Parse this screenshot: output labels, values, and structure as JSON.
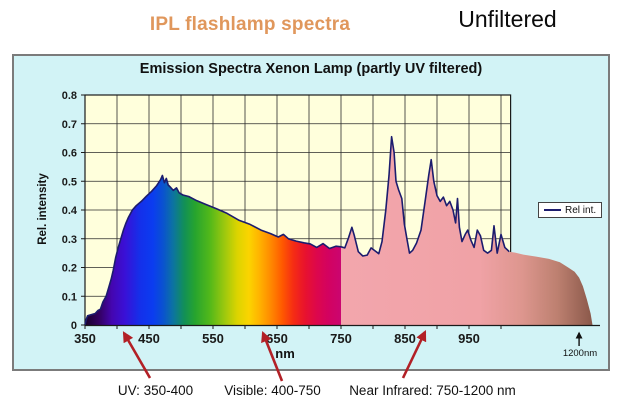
{
  "header": {
    "title": "IPL flashlamp spectra",
    "right_label": "Unfiltered"
  },
  "annotations": [
    {
      "label": "UV: 350-400"
    },
    {
      "label": "Visible: 400-750"
    },
    {
      "label": "Near Infrared: 750-1200 nm"
    }
  ],
  "colors": {
    "chart_bg": "#d2f3f6",
    "plot_bg": "#ffffdc",
    "grid": "#2b2b2b",
    "axis": "#1a1a1a",
    "line": "#1c1c6e",
    "title_orange": "#e0975c",
    "arrow_red": "#b22026",
    "nir_stops": [
      [
        0,
        "#f3a6ad"
      ],
      [
        0.55,
        "#f0a2a6"
      ],
      [
        0.72,
        "#dd968e"
      ],
      [
        0.86,
        "#bd8070"
      ],
      [
        1,
        "#8a584a"
      ]
    ],
    "visible_stops": [
      [
        350,
        "#180028"
      ],
      [
        372,
        "#330060"
      ],
      [
        392,
        "#4406b0"
      ],
      [
        412,
        "#3a10d6"
      ],
      [
        436,
        "#1430ea"
      ],
      [
        456,
        "#0b3cf0"
      ],
      [
        472,
        "#0a52d0"
      ],
      [
        488,
        "#0c74a0"
      ],
      [
        505,
        "#129057"
      ],
      [
        522,
        "#27a42e"
      ],
      [
        545,
        "#52b81a"
      ],
      [
        568,
        "#9cc80e"
      ],
      [
        588,
        "#dcd400"
      ],
      [
        606,
        "#fbd400"
      ],
      [
        622,
        "#ffb400"
      ],
      [
        640,
        "#ff8a00"
      ],
      [
        658,
        "#ff5a00"
      ],
      [
        676,
        "#f52c14"
      ],
      [
        694,
        "#e8122e"
      ],
      [
        712,
        "#dd074c"
      ],
      [
        730,
        "#d30260"
      ],
      [
        750,
        "#cb0570"
      ]
    ]
  },
  "chart_data": {
    "type": "area",
    "title": "Emission Spectra Xenon Lamp (partly UV filtered)",
    "xlabel": "nm",
    "ylabel": "Rel. intensity",
    "legend": {
      "label": "Rel int.",
      "position": "middle-right"
    },
    "grid": true,
    "xlim": [
      350,
      1015
    ],
    "ylim": [
      0,
      0.8
    ],
    "x_ticks": [
      350,
      450,
      550,
      650,
      750,
      850,
      950
    ],
    "x_minor_step": 50,
    "y_tick_labels": [
      "0.8",
      "0.7",
      "0.6",
      "0.5",
      "0.4",
      "0.3",
      "0.2",
      "0.1",
      "0"
    ],
    "bands": {
      "visible_nm": [
        350,
        750
      ],
      "near_infrared_nm": [
        750,
        1200
      ]
    },
    "extension": {
      "end_nm": 1143,
      "end_label": "1200nm"
    },
    "line_end_nm": 1016,
    "points": [
      [
        350,
        0
      ],
      [
        352,
        0.02
      ],
      [
        354,
        0.032
      ],
      [
        360,
        0.036
      ],
      [
        366,
        0.04
      ],
      [
        370,
        0.05
      ],
      [
        374,
        0.055
      ],
      [
        378,
        0.08
      ],
      [
        383,
        0.1
      ],
      [
        387,
        0.13
      ],
      [
        391,
        0.16
      ],
      [
        394,
        0.19
      ],
      [
        398,
        0.235
      ],
      [
        402,
        0.27
      ],
      [
        406,
        0.3
      ],
      [
        410,
        0.33
      ],
      [
        414,
        0.355
      ],
      [
        418,
        0.375
      ],
      [
        424,
        0.4
      ],
      [
        430,
        0.415
      ],
      [
        438,
        0.43
      ],
      [
        446,
        0.448
      ],
      [
        454,
        0.465
      ],
      [
        462,
        0.485
      ],
      [
        468,
        0.505
      ],
      [
        471,
        0.52
      ],
      [
        474,
        0.495
      ],
      [
        477,
        0.51
      ],
      [
        480,
        0.487
      ],
      [
        484,
        0.478
      ],
      [
        488,
        0.468
      ],
      [
        493,
        0.477
      ],
      [
        497,
        0.46
      ],
      [
        503,
        0.452
      ],
      [
        512,
        0.447
      ],
      [
        525,
        0.432
      ],
      [
        540,
        0.418
      ],
      [
        555,
        0.405
      ],
      [
        572,
        0.388
      ],
      [
        590,
        0.365
      ],
      [
        608,
        0.35
      ],
      [
        625,
        0.33
      ],
      [
        640,
        0.318
      ],
      [
        652,
        0.306
      ],
      [
        660,
        0.315
      ],
      [
        668,
        0.3
      ],
      [
        680,
        0.292
      ],
      [
        692,
        0.286
      ],
      [
        702,
        0.282
      ],
      [
        712,
        0.27
      ],
      [
        722,
        0.283
      ],
      [
        732,
        0.266
      ],
      [
        742,
        0.274
      ],
      [
        750,
        0.272
      ],
      [
        756,
        0.268
      ],
      [
        762,
        0.305
      ],
      [
        767,
        0.34
      ],
      [
        771,
        0.31
      ],
      [
        777,
        0.255
      ],
      [
        784,
        0.24
      ],
      [
        791,
        0.243
      ],
      [
        797,
        0.268
      ],
      [
        803,
        0.258
      ],
      [
        809,
        0.248
      ],
      [
        814,
        0.29
      ],
      [
        820,
        0.4
      ],
      [
        825,
        0.52
      ],
      [
        829,
        0.655
      ],
      [
        833,
        0.6
      ],
      [
        836,
        0.5
      ],
      [
        840,
        0.47
      ],
      [
        845,
        0.44
      ],
      [
        849,
        0.35
      ],
      [
        853,
        0.3
      ],
      [
        857,
        0.25
      ],
      [
        862,
        0.26
      ],
      [
        868,
        0.285
      ],
      [
        875,
        0.33
      ],
      [
        882,
        0.44
      ],
      [
        887,
        0.52
      ],
      [
        891,
        0.575
      ],
      [
        895,
        0.5
      ],
      [
        900,
        0.45
      ],
      [
        905,
        0.43
      ],
      [
        910,
        0.445
      ],
      [
        915,
        0.415
      ],
      [
        920,
        0.43
      ],
      [
        925,
        0.4
      ],
      [
        929,
        0.355
      ],
      [
        932,
        0.44
      ],
      [
        935,
        0.34
      ],
      [
        939,
        0.29
      ],
      [
        944,
        0.315
      ],
      [
        948,
        0.33
      ],
      [
        953,
        0.295
      ],
      [
        958,
        0.27
      ],
      [
        963,
        0.33
      ],
      [
        968,
        0.31
      ],
      [
        973,
        0.26
      ],
      [
        979,
        0.25
      ],
      [
        985,
        0.26
      ],
      [
        989,
        0.345
      ],
      [
        994,
        0.25
      ],
      [
        1000,
        0.315
      ],
      [
        1006,
        0.27
      ],
      [
        1013,
        0.255
      ],
      [
        1022,
        0.252
      ],
      [
        1035,
        0.245
      ],
      [
        1055,
        0.238
      ],
      [
        1075,
        0.23
      ],
      [
        1092,
        0.218
      ],
      [
        1105,
        0.2
      ],
      [
        1115,
        0.185
      ],
      [
        1122,
        0.165
      ],
      [
        1128,
        0.135
      ],
      [
        1134,
        0.09
      ],
      [
        1140,
        0.04
      ],
      [
        1143,
        0
      ]
    ]
  }
}
